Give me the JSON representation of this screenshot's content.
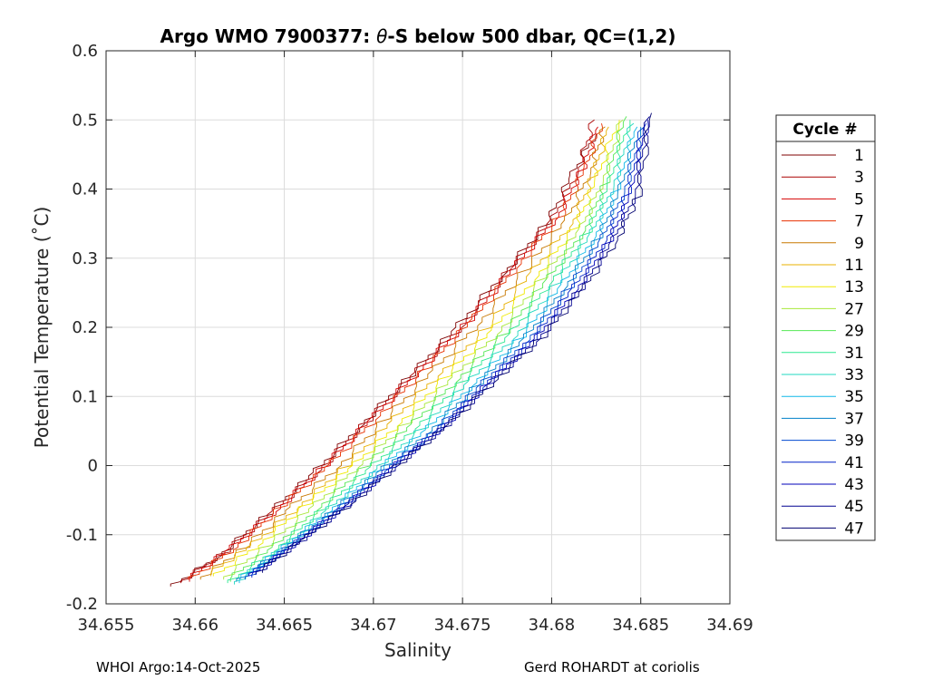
{
  "chart_data": {
    "type": "line",
    "title_prefix": "Argo WMO 7900377: ",
    "title_symbol": "θ",
    "title_suffix": "-S below 500 dbar,  QC=(1,2)",
    "xlabel": "Salinity",
    "ylabel": "Potential Temperature (˚C)",
    "xlim": [
      34.655,
      34.69
    ],
    "ylim": [
      -0.2,
      0.6
    ],
    "xticks": [
      "34.655",
      "34.66",
      "34.665",
      "34.67",
      "34.675",
      "34.68",
      "34.685",
      "34.69"
    ],
    "yticks": [
      "-0.2",
      "-0.1",
      "0",
      "0.1",
      "0.2",
      "0.3",
      "0.4",
      "0.5",
      "0.6"
    ],
    "grid": true,
    "legend": {
      "title": "Cycle #",
      "placement": "outside-right",
      "entries": [
        {
          "label": "1",
          "color": "#7f0000"
        },
        {
          "label": "3",
          "color": "#aa0000"
        },
        {
          "label": "5",
          "color": "#d40000"
        },
        {
          "label": "7",
          "color": "#e83000"
        },
        {
          "label": "9",
          "color": "#c87800"
        },
        {
          "label": "11",
          "color": "#e8b000"
        },
        {
          "label": "13",
          "color": "#f0ea00"
        },
        {
          "label": "27",
          "color": "#a8e83a"
        },
        {
          "label": "29",
          "color": "#55e855"
        },
        {
          "label": "31",
          "color": "#2ae890"
        },
        {
          "label": "33",
          "color": "#20d8c0"
        },
        {
          "label": "35",
          "color": "#10b8e8"
        },
        {
          "label": "37",
          "color": "#0080c8"
        },
        {
          "label": "39",
          "color": "#0048d0"
        },
        {
          "label": "41",
          "color": "#0020c8"
        },
        {
          "label": "43",
          "color": "#0000b8"
        },
        {
          "label": "45",
          "color": "#000090"
        },
        {
          "label": "47",
          "color": "#000070"
        }
      ]
    },
    "series": [
      {
        "name": "1",
        "color": "#7f0000",
        "x": [
          34.6588,
          34.6615,
          34.6642,
          34.6668,
          34.6695,
          34.6722,
          34.6748,
          34.6775,
          34.6798,
          34.6812,
          34.6825
        ],
        "y": [
          -0.175,
          -0.13,
          -0.07,
          -0.01,
          0.06,
          0.13,
          0.2,
          0.28,
          0.35,
          0.42,
          0.48
        ]
      },
      {
        "name": "3",
        "color": "#aa0000",
        "x": [
          34.6592,
          34.6618,
          34.6645,
          34.6671,
          34.6698,
          34.6725,
          34.6752,
          34.6778,
          34.6801,
          34.6815,
          34.6824
        ],
        "y": [
          -0.17,
          -0.125,
          -0.066,
          -0.006,
          0.065,
          0.135,
          0.205,
          0.285,
          0.355,
          0.425,
          0.5
        ]
      },
      {
        "name": "5",
        "color": "#d40000",
        "x": [
          34.6595,
          34.6621,
          34.6648,
          34.6674,
          34.6701,
          34.6728,
          34.6755,
          34.6781,
          34.6804,
          34.6818,
          34.6826
        ],
        "y": [
          -0.168,
          -0.12,
          -0.062,
          0.0,
          0.07,
          0.14,
          0.21,
          0.29,
          0.36,
          0.43,
          0.49
        ]
      },
      {
        "name": "7",
        "color": "#e83000",
        "x": [
          34.6598,
          34.6624,
          34.665,
          34.6677,
          34.6704,
          34.6731,
          34.6757,
          34.6783,
          34.6806,
          34.682,
          34.6828
        ],
        "y": [
          -0.165,
          -0.118,
          -0.058,
          0.002,
          0.072,
          0.142,
          0.212,
          0.292,
          0.362,
          0.432,
          0.495
        ]
      },
      {
        "name": "9",
        "color": "#c87800",
        "x": [
          34.6603,
          34.6629,
          34.6655,
          34.6682,
          34.6708,
          34.6735,
          34.6761,
          34.6787,
          34.6809,
          34.6822,
          34.683
        ],
        "y": [
          -0.165,
          -0.118,
          -0.06,
          0.0,
          0.068,
          0.138,
          0.208,
          0.285,
          0.355,
          0.425,
          0.49
        ]
      },
      {
        "name": "11",
        "color": "#e8b000",
        "x": [
          34.6607,
          34.6633,
          34.666,
          34.6686,
          34.6712,
          34.6739,
          34.6765,
          34.679,
          34.6812,
          34.6824,
          34.6832
        ],
        "y": [
          -0.16,
          -0.115,
          -0.058,
          0.0,
          0.065,
          0.135,
          0.2,
          0.28,
          0.35,
          0.42,
          0.49
        ]
      },
      {
        "name": "13",
        "color": "#f0ea00",
        "x": [
          34.6612,
          34.6638,
          34.6664,
          34.669,
          34.6716,
          34.6742,
          34.6768,
          34.6793,
          34.6814,
          34.6826,
          34.6838
        ],
        "y": [
          -0.16,
          -0.112,
          -0.055,
          0.0,
          0.062,
          0.13,
          0.196,
          0.275,
          0.345,
          0.415,
          0.5
        ]
      },
      {
        "name": "27",
        "color": "#a8e83a",
        "x": [
          34.6616,
          34.6642,
          34.6668,
          34.6694,
          34.672,
          34.6746,
          34.6772,
          34.6796,
          34.6817,
          34.6829,
          34.684
        ],
        "y": [
          -0.165,
          -0.115,
          -0.058,
          0.002,
          0.062,
          0.128,
          0.195,
          0.272,
          0.342,
          0.412,
          0.5
        ]
      },
      {
        "name": "29",
        "color": "#55e855",
        "x": [
          34.6618,
          34.6645,
          34.6671,
          34.6697,
          34.6723,
          34.6749,
          34.6775,
          34.6799,
          34.6819,
          34.6831,
          34.6842
        ],
        "y": [
          -0.168,
          -0.118,
          -0.06,
          0.0,
          0.06,
          0.126,
          0.192,
          0.27,
          0.34,
          0.41,
          0.505
        ]
      },
      {
        "name": "31",
        "color": "#2ae890",
        "x": [
          34.662,
          34.6647,
          34.6673,
          34.67,
          34.6726,
          34.6752,
          34.6778,
          34.6801,
          34.6821,
          34.6833,
          34.6844
        ],
        "y": [
          -0.17,
          -0.12,
          -0.062,
          -0.002,
          0.058,
          0.124,
          0.19,
          0.268,
          0.338,
          0.408,
          0.5
        ]
      },
      {
        "name": "33",
        "color": "#20d8c0",
        "x": [
          34.6622,
          34.6649,
          34.6675,
          34.6702,
          34.6729,
          34.6755,
          34.6781,
          34.6804,
          34.6823,
          34.6835,
          34.6846
        ],
        "y": [
          -0.172,
          -0.122,
          -0.065,
          -0.005,
          0.055,
          0.122,
          0.188,
          0.265,
          0.335,
          0.405,
          0.495
        ]
      },
      {
        "name": "35",
        "color": "#10b8e8",
        "x": [
          34.6623,
          34.665,
          34.6677,
          34.6704,
          34.6731,
          34.6758,
          34.6784,
          34.6807,
          34.6825,
          34.6837,
          34.6848
        ],
        "y": [
          -0.17,
          -0.12,
          -0.065,
          -0.006,
          0.052,
          0.12,
          0.186,
          0.262,
          0.332,
          0.4,
          0.49
        ]
      },
      {
        "name": "37",
        "color": "#0080c8",
        "x": [
          34.6625,
          34.6652,
          34.6679,
          34.6706,
          34.6733,
          34.676,
          34.6786,
          34.6809,
          34.6827,
          34.6839,
          34.685
        ],
        "y": [
          -0.168,
          -0.118,
          -0.065,
          -0.006,
          0.05,
          0.118,
          0.184,
          0.26,
          0.33,
          0.398,
          0.49
        ]
      },
      {
        "name": "39",
        "color": "#0048d0",
        "x": [
          34.6628,
          34.6655,
          34.6682,
          34.6709,
          34.6736,
          34.6762,
          34.6788,
          34.6811,
          34.6829,
          34.6841,
          34.6852
        ],
        "y": [
          -0.165,
          -0.115,
          -0.062,
          -0.004,
          0.05,
          0.118,
          0.182,
          0.258,
          0.328,
          0.396,
          0.49
        ]
      },
      {
        "name": "41",
        "color": "#0020c8",
        "x": [
          34.663,
          34.6657,
          34.6684,
          34.6711,
          34.6738,
          34.6764,
          34.679,
          34.6813,
          34.6831,
          34.6843,
          34.6853
        ],
        "y": [
          -0.162,
          -0.113,
          -0.06,
          -0.002,
          0.052,
          0.118,
          0.182,
          0.256,
          0.326,
          0.394,
          0.495
        ]
      },
      {
        "name": "43",
        "color": "#0000b8",
        "x": [
          34.6632,
          34.6659,
          34.6686,
          34.6713,
          34.674,
          34.6766,
          34.6792,
          34.6815,
          34.6833,
          34.6845,
          34.6854
        ],
        "y": [
          -0.16,
          -0.11,
          -0.058,
          0.0,
          0.055,
          0.12,
          0.183,
          0.255,
          0.325,
          0.392,
          0.5
        ]
      },
      {
        "name": "45",
        "color": "#000090",
        "x": [
          34.6634,
          34.6661,
          34.6688,
          34.6715,
          34.6742,
          34.6768,
          34.6794,
          34.6817,
          34.6835,
          34.6847,
          34.6855
        ],
        "y": [
          -0.158,
          -0.108,
          -0.055,
          0.002,
          0.058,
          0.122,
          0.184,
          0.255,
          0.325,
          0.39,
          0.505
        ]
      },
      {
        "name": "47",
        "color": "#000070",
        "x": [
          34.6636,
          34.6663,
          34.669,
          34.6717,
          34.6744,
          34.677,
          34.6796,
          34.6819,
          34.6837,
          34.6849,
          34.6856
        ],
        "y": [
          -0.155,
          -0.105,
          -0.052,
          0.005,
          0.06,
          0.125,
          0.186,
          0.256,
          0.326,
          0.39,
          0.51
        ]
      }
    ]
  },
  "footer": {
    "left": "WHOI Argo:14-Oct-2025",
    "right": "Gerd ROHARDT at coriolis"
  }
}
